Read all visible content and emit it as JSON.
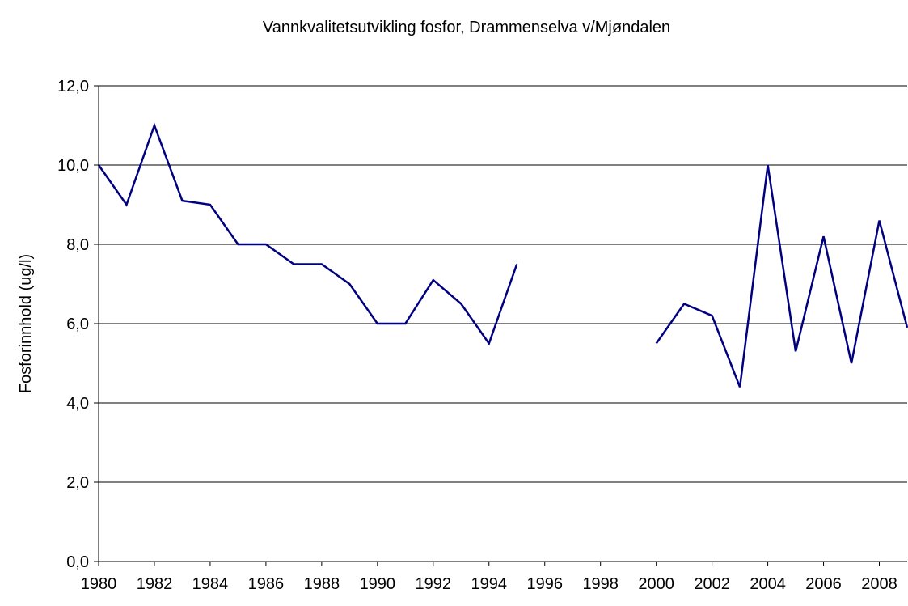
{
  "chart_data": {
    "type": "line",
    "title": "Vannkvalitetsutvikling fosfor, Drammenselva v/Mjøndalen",
    "y_label": "Fosforinnhold (ug/l)",
    "x": [
      1980,
      1981,
      1982,
      1983,
      1984,
      1985,
      1986,
      1987,
      1988,
      1989,
      1990,
      1991,
      1992,
      1993,
      1994,
      1995,
      1996,
      1997,
      1998,
      1999,
      2000,
      2001,
      2002,
      2003,
      2004,
      2005,
      2006,
      2007,
      2008,
      2009
    ],
    "series": [
      {
        "name": "Fosfor",
        "color": "#000080",
        "values": [
          10,
          9,
          11,
          9.1,
          9,
          8,
          8,
          7.5,
          7.5,
          7,
          6,
          6,
          7.1,
          6.5,
          5.5,
          7.5,
          null,
          null,
          null,
          null,
          5.5,
          6.5,
          6.2,
          4.4,
          10,
          5.3,
          8.2,
          5,
          8.6,
          5.9
        ]
      }
    ],
    "xlim": [
      1980,
      2009
    ],
    "xticks": [
      1980,
      1982,
      1984,
      1986,
      1988,
      1990,
      1992,
      1994,
      1996,
      1998,
      2000,
      2002,
      2004,
      2006,
      2008
    ],
    "ylim": [
      0,
      12
    ],
    "yticks": [
      {
        "value": 0,
        "label": "0,0"
      },
      {
        "value": 2,
        "label": "2,0"
      },
      {
        "value": 4,
        "label": "4,0"
      },
      {
        "value": 6,
        "label": "6,0"
      },
      {
        "value": 8,
        "label": "8,0"
      },
      {
        "value": 10,
        "label": "10,0"
      },
      {
        "value": 12,
        "label": "12,0"
      }
    ],
    "grid": true
  }
}
